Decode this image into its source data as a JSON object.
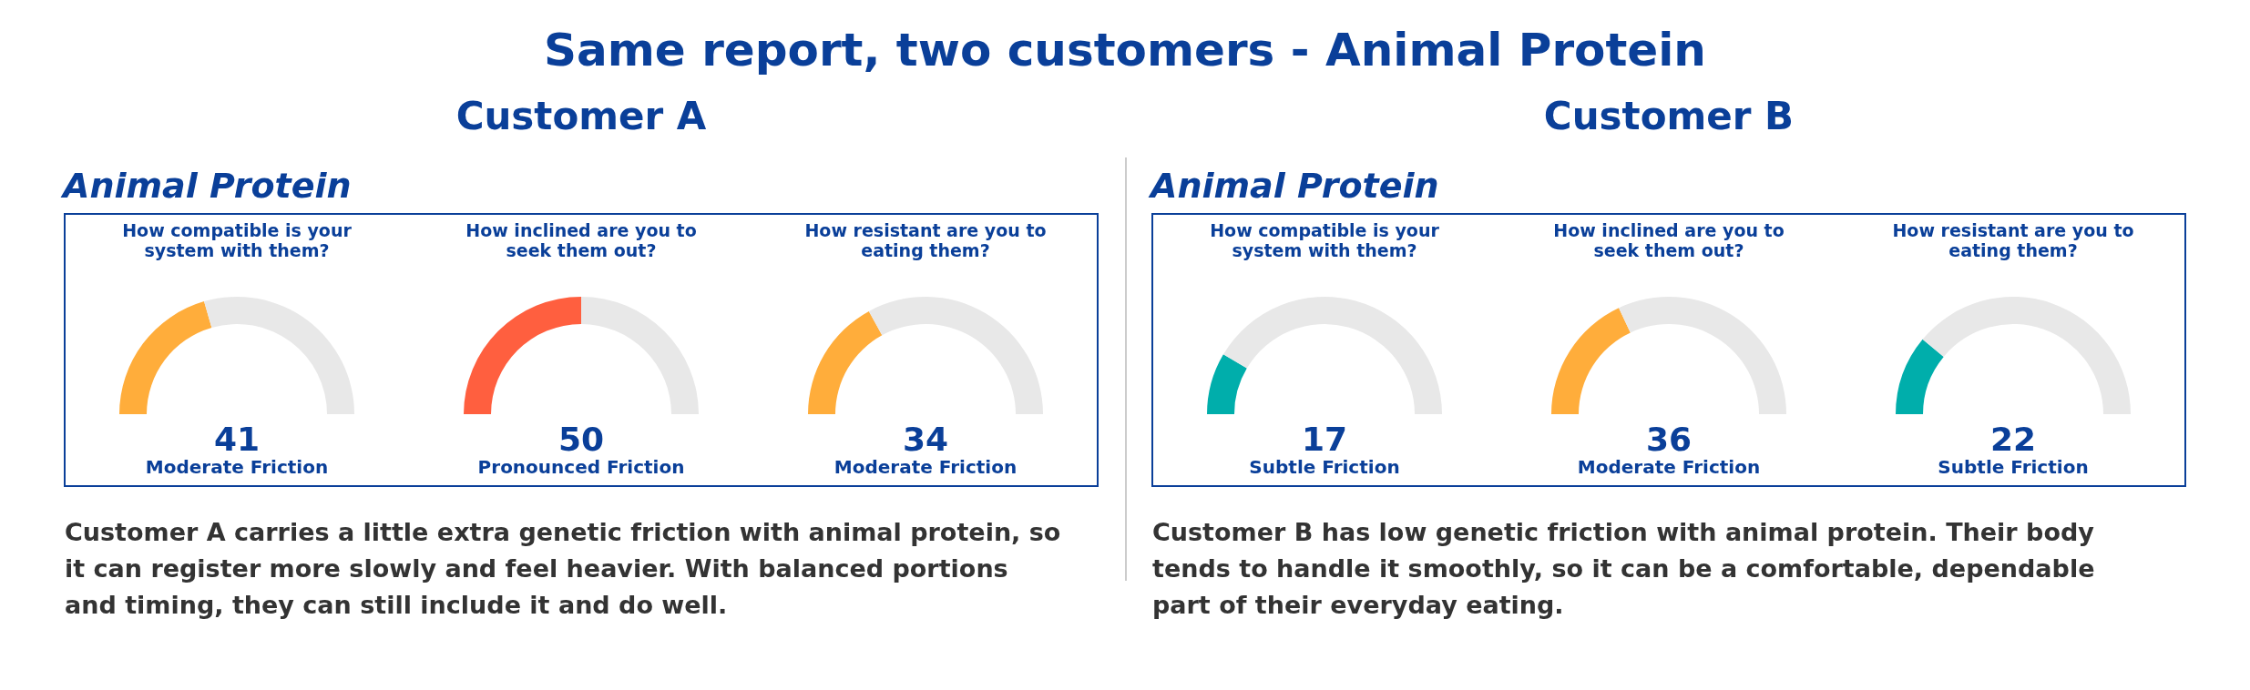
{
  "chart_data": [
    {
      "type": "other",
      "title": "Same report, two customers - Animal Protein"
    },
    {
      "type": "other",
      "title": "Customer A",
      "subtitle": "Animal Protein",
      "annotations": [
        "Customer A carries a little extra genetic friction with animal protein, so it can register more slowly and feel heavier. With balanced portions and timing, they can still include it and do well."
      ]
    },
    {
      "type": "donut",
      "title": "How compatible is your system with them?",
      "categories": [
        null,
        null
      ],
      "values": [
        41,
        59
      ],
      "colors": [
        "#ffad3b",
        "#e8e8e8"
      ],
      "annotations": [
        "41",
        "Moderate Friction"
      ]
    },
    {
      "type": "donut",
      "title": "How inclined are you to seek them out?",
      "categories": [
        null,
        null
      ],
      "values": [
        50,
        50
      ],
      "colors": [
        "#ff5f3f",
        "#e8e8e8"
      ],
      "annotations": [
        "50",
        "Pronounced Friction"
      ]
    },
    {
      "type": "donut",
      "title": "How resistant are you to eating them?",
      "categories": [
        null,
        null
      ],
      "values": [
        34,
        66
      ],
      "colors": [
        "#ffad3b",
        "#e8e8e8"
      ],
      "annotations": [
        "34",
        "Moderate Friction"
      ]
    },
    {
      "type": "other",
      "title": "Customer B",
      "subtitle": "Animal Protein",
      "annotations": [
        "Customer B has low genetic friction with animal protein. Their body tends to handle it smoothly, so it can be a comfortable, dependable part of their everyday eating."
      ]
    },
    {
      "type": "donut",
      "title": "How compatible is your system with them?",
      "categories": [
        null,
        null
      ],
      "values": [
        17,
        83
      ],
      "colors": [
        "#00aeab",
        "#e8e8e8"
      ],
      "annotations": [
        "17",
        "Subtle Friction"
      ]
    },
    {
      "type": "donut",
      "title": "How inclined are you to seek them out?",
      "categories": [
        null,
        null
      ],
      "values": [
        36,
        64
      ],
      "colors": [
        "#ffad3b",
        "#e8e8e8"
      ],
      "annotations": [
        "36",
        "Moderate Friction"
      ]
    },
    {
      "type": "donut",
      "title": "How resistant are you to eating them?",
      "categories": [
        null,
        null
      ],
      "values": [
        22,
        78
      ],
      "colors": [
        "#00aeab",
        "#e8e8e8"
      ],
      "annotations": [
        "22",
        "Subtle Friction"
      ]
    }
  ]
}
